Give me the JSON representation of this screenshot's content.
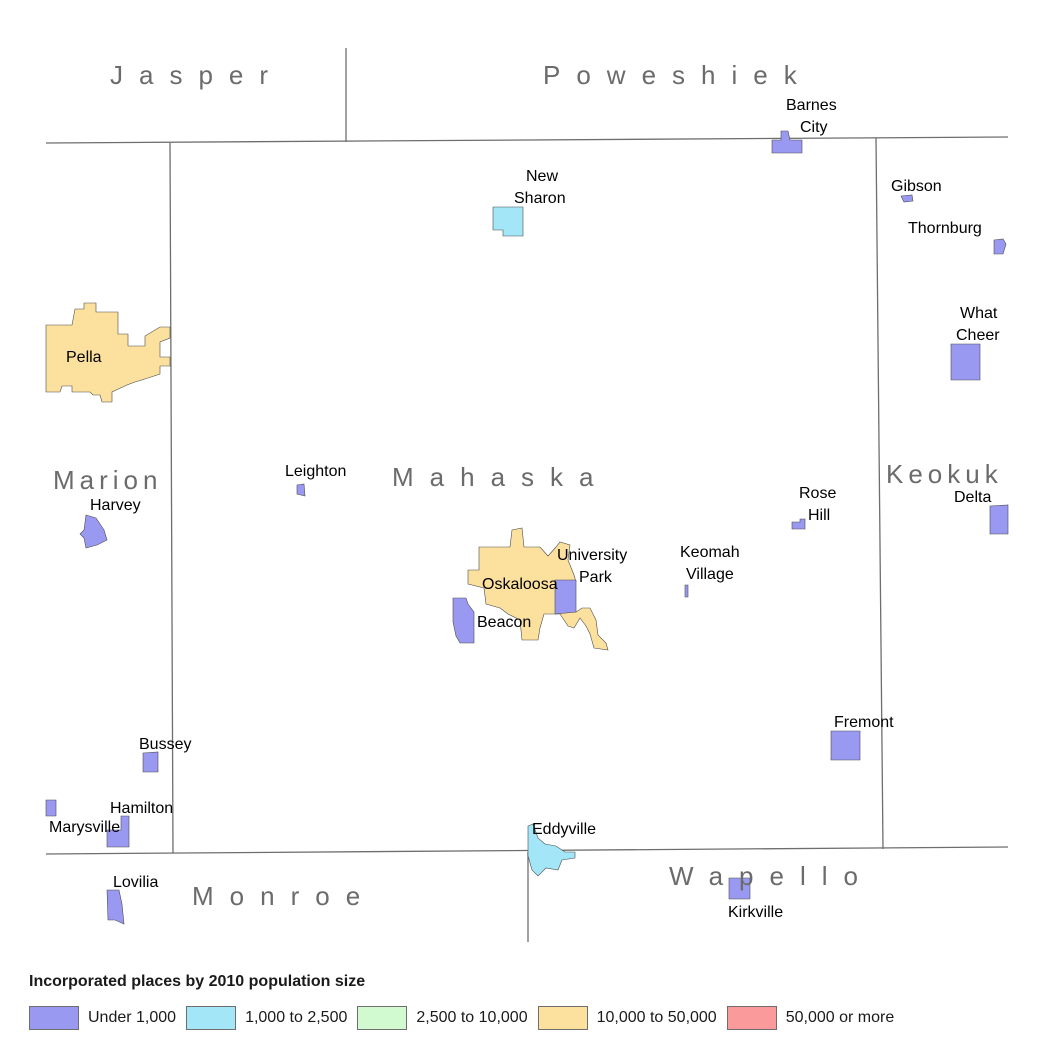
{
  "counties": {
    "jasper": "Jasper",
    "poweshiek": "Poweshiek",
    "marion": "Marion",
    "mahaska": "Mahaska",
    "keokuk": "Keokuk",
    "monroe": "Monroe",
    "wapello": "Wapello"
  },
  "places": {
    "pella": {
      "name": "Pella",
      "category": "10,000 to 50,000"
    },
    "oskaloosa": {
      "name": "Oskaloosa",
      "category": "10,000 to 50,000"
    },
    "new_sharon": {
      "line1": "New",
      "line2": "Sharon",
      "category": "1,000 to 2,500"
    },
    "eddyville": {
      "name": "Eddyville",
      "category": "1,000 to 2,500"
    },
    "barnes_city": {
      "line1": "Barnes",
      "line2": "City",
      "category": "Under 1,000"
    },
    "gibson": {
      "name": "Gibson",
      "category": "Under 1,000"
    },
    "thornburg": {
      "name": "Thornburg",
      "category": "Under 1,000"
    },
    "what_cheer": {
      "line1": "What",
      "line2": "Cheer",
      "category": "Under 1,000"
    },
    "harvey": {
      "name": "Harvey",
      "category": "Under 1,000"
    },
    "leighton": {
      "name": "Leighton",
      "category": "Under 1,000"
    },
    "rose_hill": {
      "line1": "Rose",
      "line2": "Hill",
      "category": "Under 1,000"
    },
    "delta": {
      "name": "Delta",
      "category": "Under 1,000"
    },
    "university_park": {
      "line1": "University",
      "line2": "Park",
      "category": "Under 1,000"
    },
    "keomah_village": {
      "line1": "Keomah",
      "line2": "Village",
      "category": "Under 1,000"
    },
    "beacon": {
      "name": "Beacon",
      "category": "Under 1,000"
    },
    "fremont": {
      "name": "Fremont",
      "category": "Under 1,000"
    },
    "bussey": {
      "name": "Bussey",
      "category": "Under 1,000"
    },
    "hamilton": {
      "name": "Hamilton",
      "category": "Under 1,000"
    },
    "marysville": {
      "name": "Marysville",
      "category": "Under 1,000"
    },
    "lovilia": {
      "name": "Lovilia",
      "category": "Under 1,000"
    },
    "kirkville": {
      "name": "Kirkville",
      "category": "Under 1,000"
    }
  },
  "legend": {
    "title": "Incorporated places by 2010 population size",
    "items": [
      {
        "label": "Under 1,000",
        "color": "#9999f2"
      },
      {
        "label": "1,000 to 2,500",
        "color": "#a3e6f7"
      },
      {
        "label": "2,500 to 10,000",
        "color": "#d1fad1"
      },
      {
        "label": "10,000 to 50,000",
        "color": "#fce19e"
      },
      {
        "label": "50,000 or more",
        "color": "#fa9a9a"
      }
    ]
  },
  "colors": {
    "under_1000": "#9999f2",
    "1000_2500": "#a3e6f7",
    "2500_10000": "#d1fad1",
    "10000_50000": "#fce19e",
    "50000_plus": "#fa9a9a",
    "county_line": "#6e6e6e",
    "county_label": "#6b6b6b"
  }
}
